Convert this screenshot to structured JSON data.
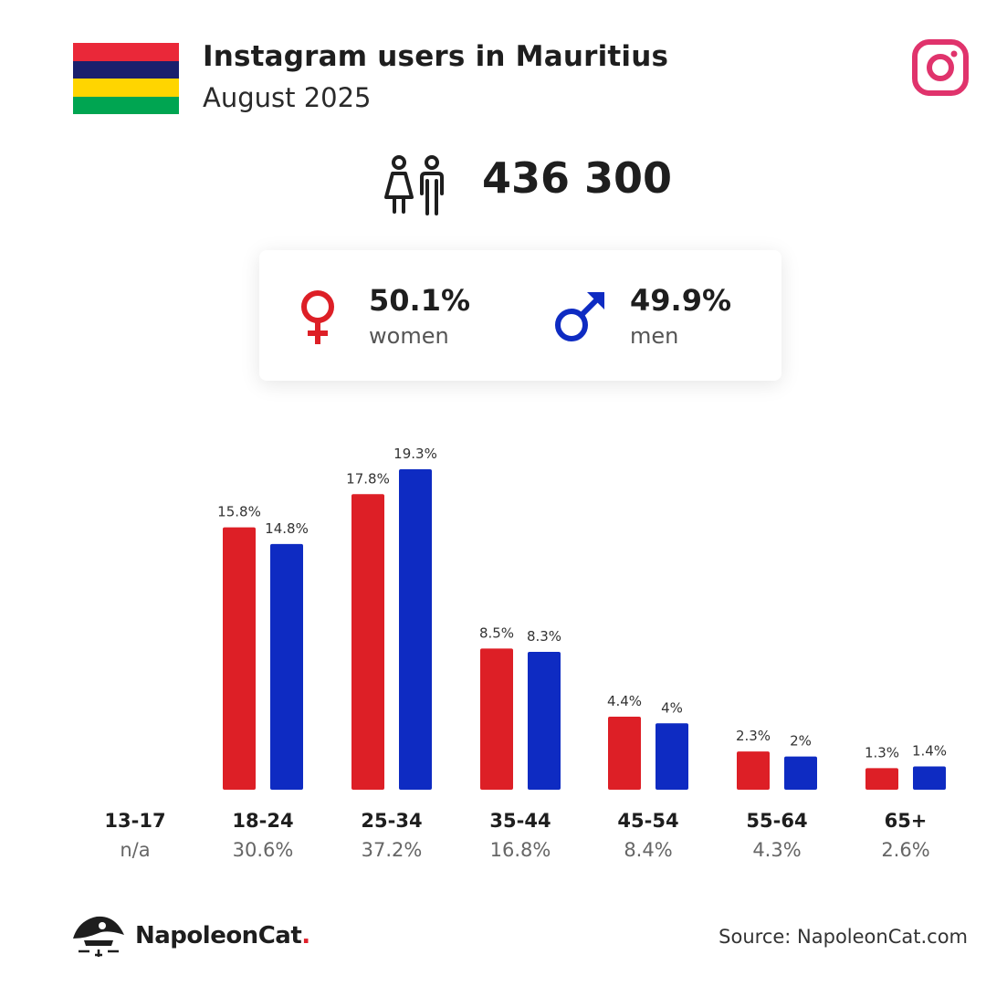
{
  "header": {
    "title": "Instagram users in Mauritius",
    "subtitle": "August 2025"
  },
  "flag_colors": [
    "#ea2839",
    "#1a206d",
    "#ffd500",
    "#00a551"
  ],
  "colors": {
    "women": "#dd1f26",
    "men": "#0e2bc2",
    "instagram": "#e0336c"
  },
  "total": {
    "value": "436 300",
    "icon": "people-icon"
  },
  "gender": {
    "women": {
      "pct": "50.1%",
      "label": "women",
      "icon": "female-symbol-icon"
    },
    "men": {
      "pct": "49.9%",
      "label": "men",
      "icon": "male-symbol-icon"
    }
  },
  "chart_data": {
    "type": "bar",
    "categories": [
      "13-17",
      "18-24",
      "25-34",
      "35-44",
      "45-54",
      "55-64",
      "65+"
    ],
    "category_totals": [
      "n/a",
      "30.6%",
      "37.2%",
      "16.8%",
      "8.4%",
      "4.3%",
      "2.6%"
    ],
    "series": [
      {
        "values": [
          null,
          15.8,
          17.8,
          8.5,
          4.4,
          2.3,
          1.3
        ],
        "labels": [
          "",
          "15.8%",
          "17.8%",
          "8.5%",
          "4.4%",
          "2.3%",
          "1.3%"
        ],
        "color": "#dd1f26"
      },
      {
        "values": [
          null,
          14.8,
          19.3,
          8.3,
          4.0,
          2.0,
          1.4
        ],
        "labels": [
          "",
          "14.8%",
          "19.3%",
          "8.3%",
          "4%",
          "2%",
          "1.4%"
        ],
        "color": "#0e2bc2"
      }
    ],
    "title": "",
    "xlabel": "",
    "ylabel": "",
    "ylim": [
      0,
      19.3
    ],
    "grid": false,
    "legend": "none"
  },
  "footer": {
    "brand": "NapoleonCat",
    "brand_dot": ".",
    "source": "Source: NapoleonCat.com"
  }
}
